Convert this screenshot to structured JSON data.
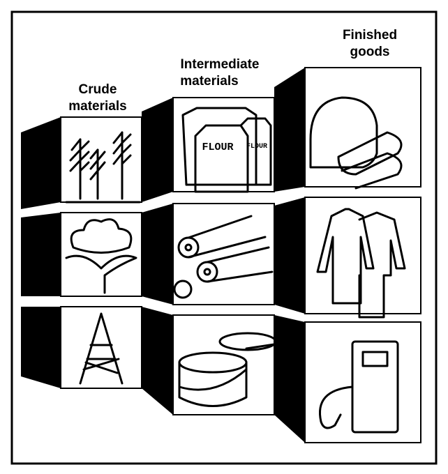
{
  "columns": [
    {
      "label_lines": [
        "Crude",
        "materials"
      ]
    },
    {
      "label_lines": [
        "Intermediate",
        "materials"
      ]
    },
    {
      "label_lines": [
        "Finished",
        "goods"
      ]
    }
  ],
  "bag_label": "FLOUR"
}
